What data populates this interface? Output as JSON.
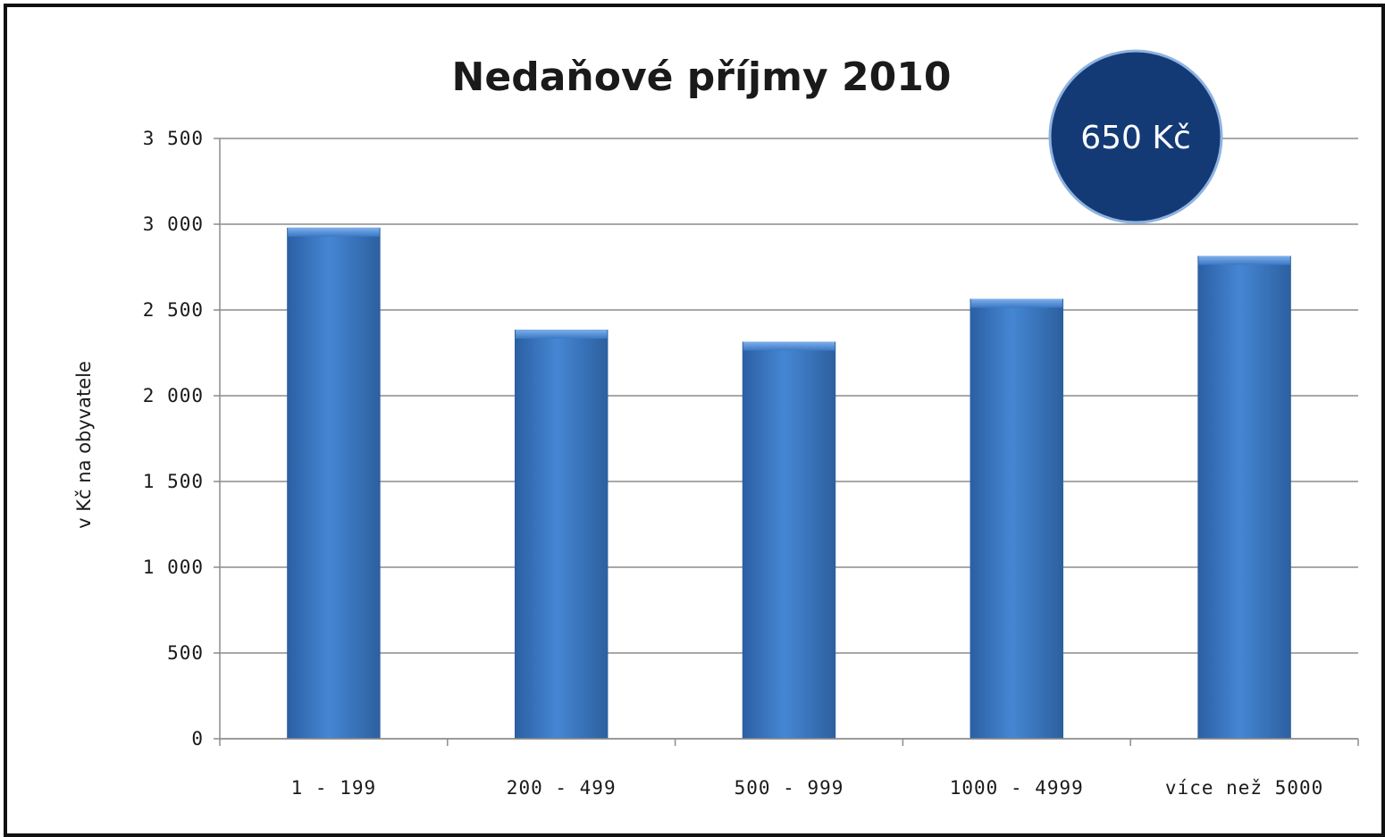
{
  "chart_data": {
    "type": "bar",
    "title": "Nedaňové příjmy 2010",
    "ylabel": "v Kč na obyvatele",
    "xlabel": "",
    "categories": [
      "1 - 199",
      "200 - 499",
      "500 - 999",
      "1000 - 4999",
      "více než 5000"
    ],
    "values": [
      2980,
      2385,
      2315,
      2565,
      2815
    ],
    "ylim": [
      0,
      3500
    ],
    "yticks": [
      0,
      500,
      1000,
      1500,
      2000,
      2500,
      3000,
      3500
    ],
    "ytick_labels": [
      "0",
      "500",
      "1 000",
      "1 500",
      "2 000",
      "2 500",
      "3 000",
      "3 500"
    ],
    "grid": true,
    "colors": {
      "bar": "#3a78c4",
      "bar_dark": "#2a5a9a",
      "grid": "#8c8c8c",
      "badge": "#143a76",
      "badge_border": "#8fb3e0"
    },
    "annotation": "650 Kč"
  }
}
